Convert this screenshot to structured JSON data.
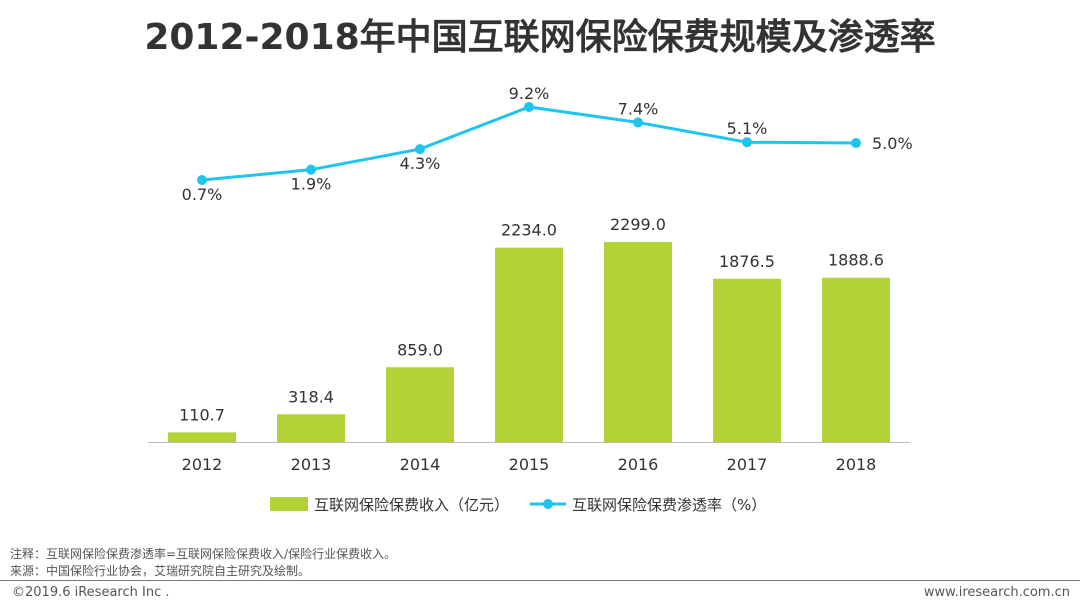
{
  "chart_data": {
    "type": "bar+line",
    "title": "2012-2018年中国互联网保险保费规模及渗透率",
    "categories": [
      "2012",
      "2013",
      "2014",
      "2015",
      "2016",
      "2017",
      "2018"
    ],
    "series": [
      {
        "name": "互联网保险保费收入（亿元）",
        "type": "bar",
        "color": "#b2d235",
        "values": [
          110.7,
          318.4,
          859.0,
          2234.0,
          2299.0,
          1876.5,
          1888.6
        ],
        "labels": [
          "110.7",
          "318.4",
          "859.0",
          "2234.0",
          "2299.0",
          "1876.5",
          "1888.6"
        ]
      },
      {
        "name": "互联网保险保费渗透率（%）",
        "type": "line",
        "color": "#1fc4ef",
        "values": [
          0.7,
          1.9,
          4.3,
          9.2,
          7.4,
          5.1,
          5.0
        ],
        "labels": [
          "0.7%",
          "1.9%",
          "4.3%",
          "9.2%",
          "7.4%",
          "5.1%",
          "5.0%"
        ]
      }
    ],
    "legend": "bottom",
    "grid": false
  },
  "notes": {
    "note": "注释：互联网保险保费渗透率=互联网保险保费收入/保险行业保费收入。",
    "source": "来源：中国保险行业协会，艾瑞研究院自主研究及绘制。"
  },
  "footer": {
    "copyright": "©2019.6 iResearch Inc .",
    "site": "www.iresearch.com.cn"
  }
}
